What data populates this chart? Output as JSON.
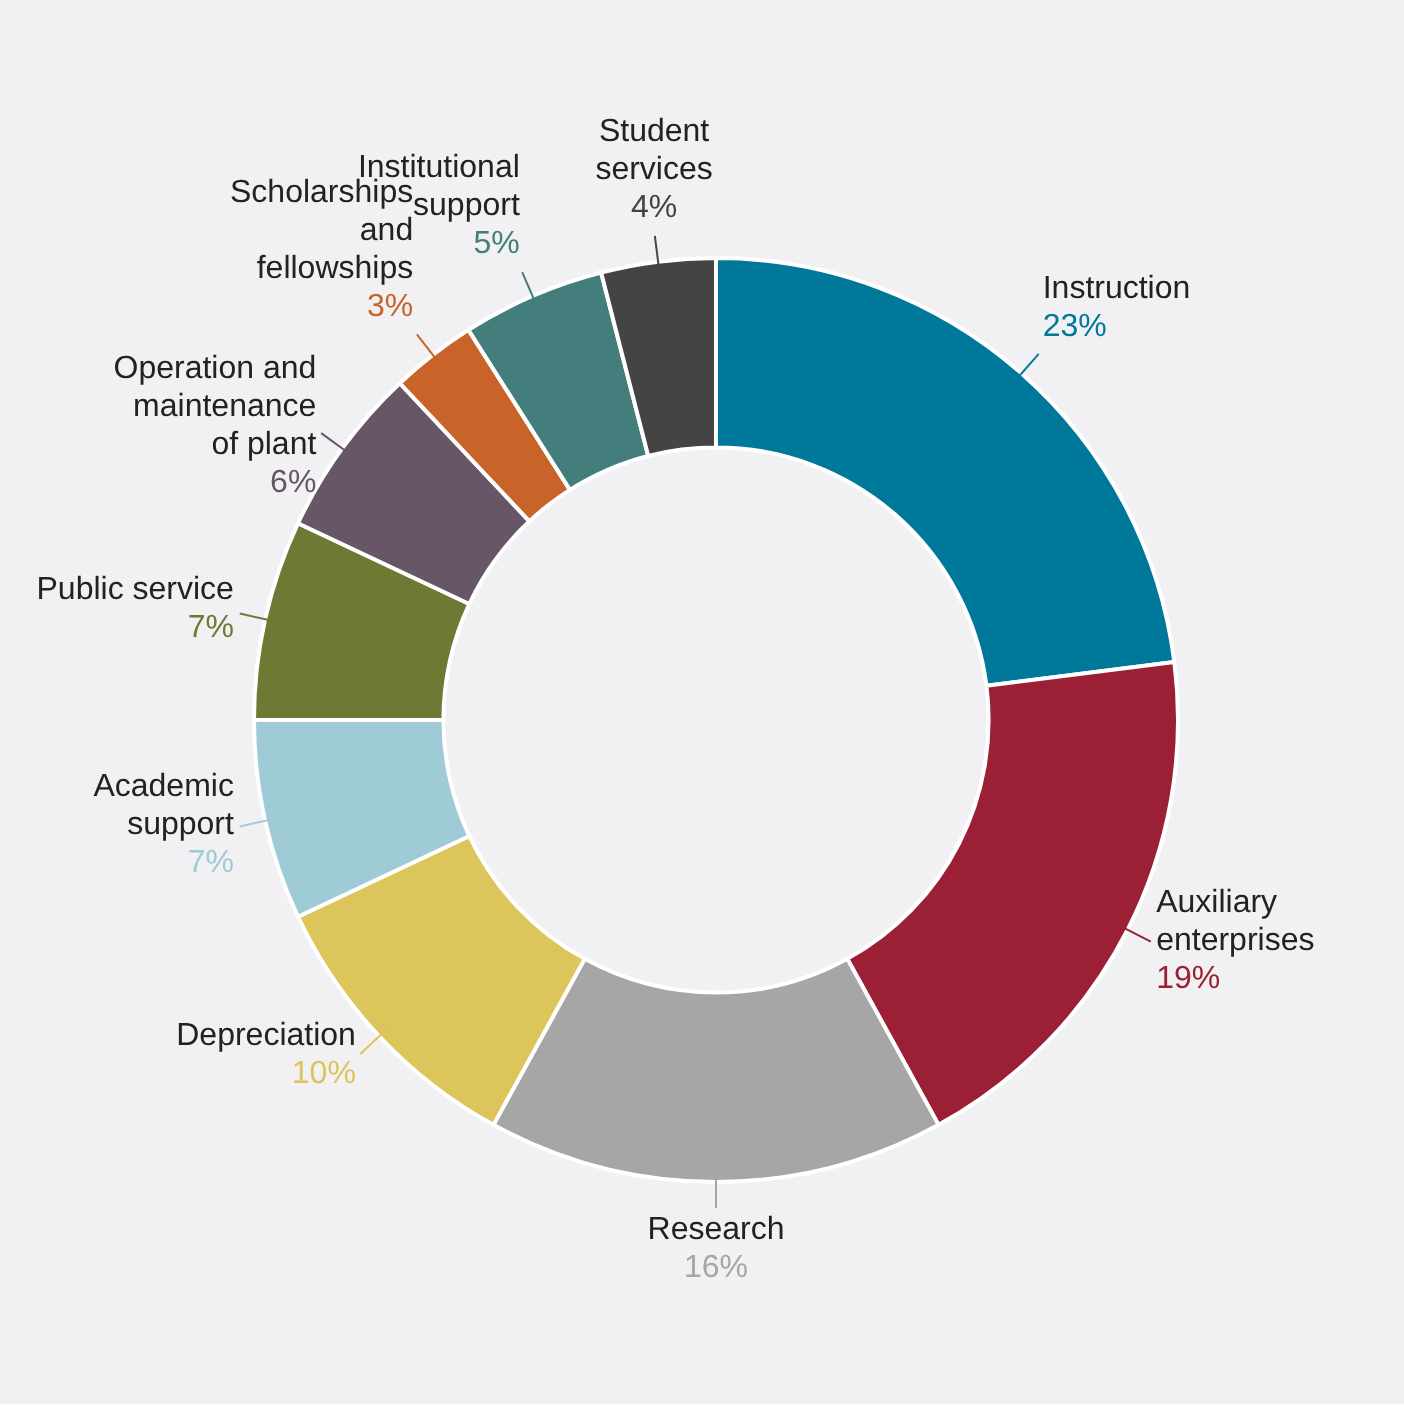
{
  "chart_data": {
    "type": "donut",
    "categories": [
      "Instruction",
      "Auxiliary enterprises",
      "Research",
      "Depreciation",
      "Academic support",
      "Public service",
      "Operation and maintenance of plant",
      "Scholarships and fellowships",
      "Institutional support",
      "Student services"
    ],
    "values": [
      23,
      19,
      16,
      10,
      7,
      7,
      6,
      3,
      5,
      4
    ],
    "value_labels": [
      "23%",
      "19%",
      "16%",
      "10%",
      "7%",
      "7%",
      "6%",
      "3%",
      "5%",
      "4%"
    ],
    "colors": [
      "#00789a",
      "#9b2035",
      "#a6a6a6",
      "#dcc55a",
      "#9ecbd6",
      "#6e7a34",
      "#675766",
      "#c8642a",
      "#437e7c",
      "#444444"
    ],
    "legend": false
  }
}
